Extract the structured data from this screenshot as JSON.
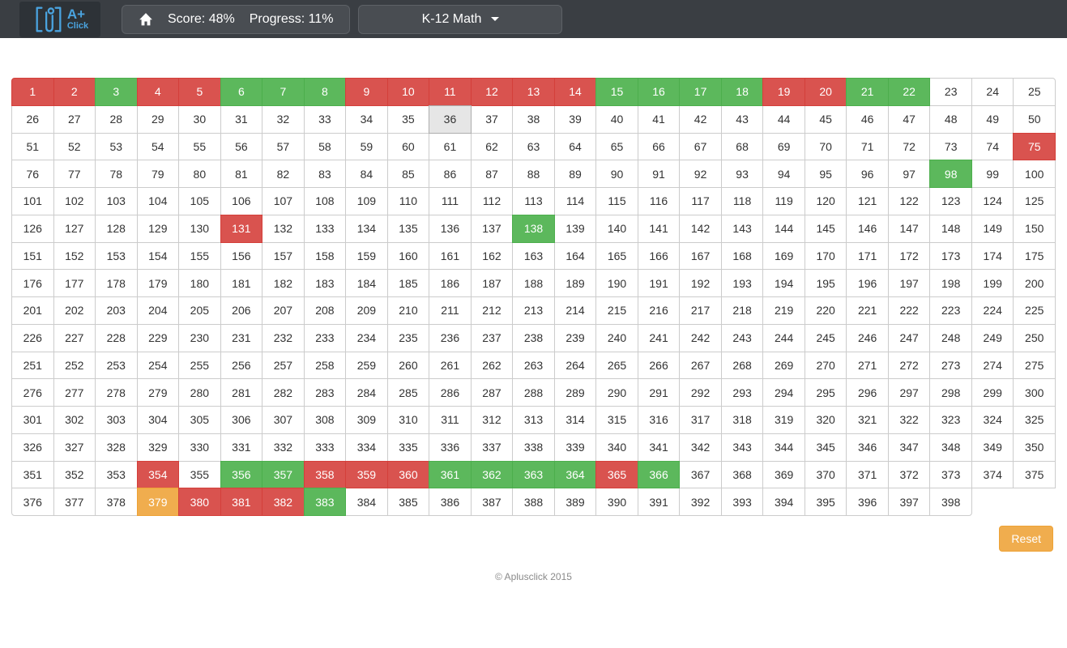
{
  "header": {
    "logo": {
      "line1": "A+",
      "line2": "Click"
    },
    "stats": {
      "score": "Score: 48%",
      "progress": "Progress: 11%"
    },
    "course": {
      "label": "K-12 Math"
    }
  },
  "grid": {
    "total": 398,
    "columns": 25,
    "states": {
      "red": [
        1,
        2,
        4,
        5,
        9,
        10,
        11,
        12,
        13,
        14,
        19,
        20,
        75,
        131,
        354,
        358,
        359,
        360,
        365,
        380,
        381,
        382
      ],
      "green": [
        3,
        6,
        7,
        8,
        15,
        16,
        17,
        18,
        21,
        22,
        98,
        138,
        356,
        357,
        361,
        362,
        363,
        364,
        366,
        383
      ],
      "orange": [
        379
      ],
      "active": [
        36
      ]
    }
  },
  "actions": {
    "reset_label": "Reset"
  },
  "footer": {
    "copyright": "© Aplusclick 2015"
  },
  "colors": {
    "header_bg": "#3a3e43",
    "logo_box_bg": "#2d3237",
    "logo_blue": "#4aa3df",
    "header_box_bg": "#494d52",
    "header_box_border": "#5d6166",
    "red": "#d9534f",
    "red_border": "#d43f3a",
    "green": "#5cb85c",
    "green_border": "#4cae4c",
    "orange": "#f0ad4e",
    "orange_border": "#eea236",
    "active_bg": "#e6e6e6",
    "active_border": "#adadad"
  }
}
